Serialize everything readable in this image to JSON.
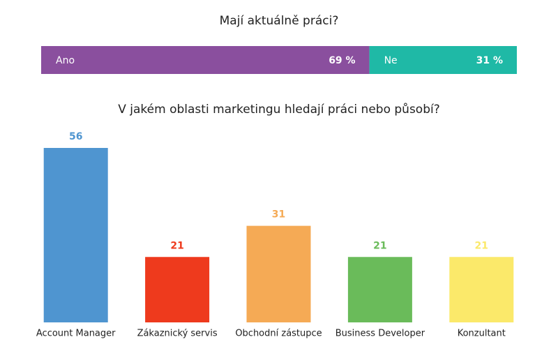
{
  "chart_data": [
    {
      "type": "stacked-bar",
      "title": "Mají aktuálně práci?",
      "xlim": [
        0,
        100
      ],
      "series": [
        {
          "name": "Ano",
          "color": "#8a4f9e",
          "values": [
            69
          ],
          "value_labels": [
            "69 %"
          ]
        },
        {
          "name": "Ne",
          "color": "#1fb9a6",
          "values": [
            31
          ],
          "value_labels": [
            "31 %"
          ]
        }
      ]
    },
    {
      "type": "bar",
      "title": "V jakém oblasti marketingu hledají práci nebo působí?",
      "categories": [
        "Account Manager",
        "Zákaznický servis",
        "Obchodní zástupce",
        "Business Developer",
        "Konzultant"
      ],
      "values": [
        56,
        21,
        31,
        21,
        21
      ],
      "colors": [
        "#4f95d0",
        "#ee3a1d",
        "#f5aa55",
        "#6abb5a",
        "#fbe96a"
      ],
      "ylim": [
        0,
        56
      ]
    }
  ]
}
